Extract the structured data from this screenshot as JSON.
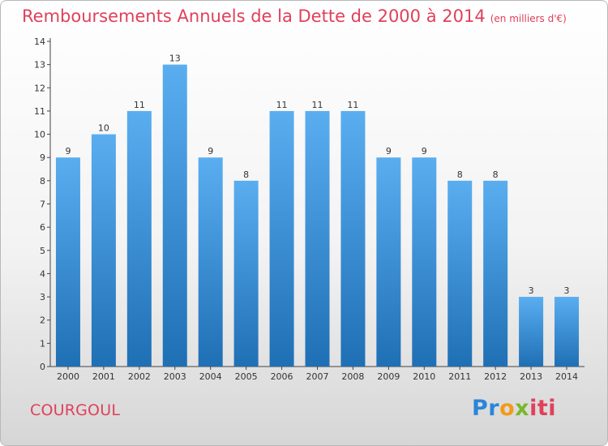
{
  "title": "Remboursements Annuels de la Dette de 2000 à 2014",
  "unit": "(en milliers d'€)",
  "commune": "COURGOUL",
  "logo": {
    "p1": "Pr",
    "p2": "o",
    "p3": "x",
    "p4": "iti"
  },
  "colors": {
    "title": "#e0405a",
    "bar_top": "#5aaef0",
    "bar_bottom": "#1f6fb5"
  },
  "chart_data": {
    "type": "bar",
    "categories": [
      "2000",
      "2001",
      "2002",
      "2003",
      "2004",
      "2005",
      "2006",
      "2007",
      "2008",
      "2009",
      "2010",
      "2011",
      "2012",
      "2013",
      "2014"
    ],
    "values": [
      9,
      10,
      11,
      13,
      9,
      8,
      11,
      11,
      11,
      9,
      9,
      8,
      8,
      3,
      3
    ],
    "ylim": [
      0,
      14
    ],
    "yticks": [
      0,
      1,
      2,
      3,
      4,
      5,
      6,
      7,
      8,
      9,
      10,
      11,
      12,
      13,
      14
    ],
    "grid": false,
    "data_labels": true
  }
}
